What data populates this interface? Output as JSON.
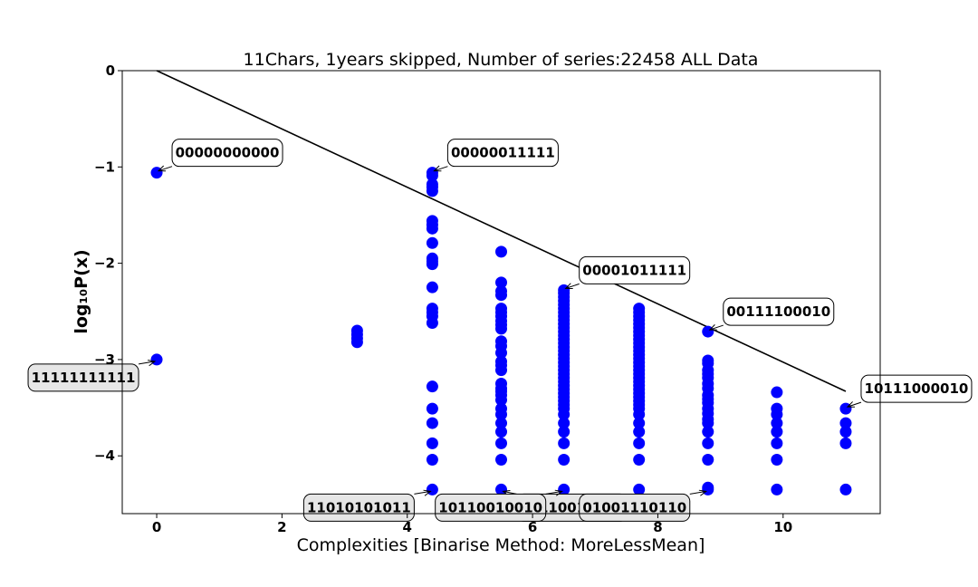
{
  "chart_data": {
    "type": "scatter",
    "title": "11Chars, 1years skipped, Number of series:22458 ALL Data",
    "xlabel": "Complexities [Binarise Method: MoreLessMean]",
    "ylabel": "log₁₀P(x)",
    "xlim": [
      -0.55,
      11.55
    ],
    "ylim": [
      -4.6,
      0
    ],
    "xticks": [
      0,
      2,
      4,
      6,
      8,
      10
    ],
    "yticks": [
      0,
      -1,
      -2,
      -3,
      -4
    ],
    "grid": false,
    "point_color": "#0000ff",
    "line_color": "#000000",
    "line": {
      "x": [
        0,
        11
      ],
      "y": [
        0,
        -3.33
      ]
    },
    "series": [
      {
        "x": 0,
        "y": [
          -1.06,
          -3.0
        ]
      },
      {
        "x": 3.2,
        "y": [
          -2.7,
          -2.74,
          -2.78,
          -2.82
        ]
      },
      {
        "x": 4.4,
        "y": [
          -1.06,
          -1.09,
          -1.18,
          -1.21,
          -1.25,
          -1.56,
          -1.6,
          -1.64,
          -1.79,
          -1.95,
          -1.98,
          -2.01,
          -2.25,
          -2.47,
          -2.51,
          -2.55,
          -2.62,
          -3.28,
          -3.51,
          -3.66,
          -3.87,
          -4.04,
          -4.35
        ]
      },
      {
        "x": 5.5,
        "y": [
          -1.88,
          -2.2,
          -2.29,
          -2.33,
          -2.47,
          -2.51,
          -2.55,
          -2.6,
          -2.64,
          -2.68,
          -2.81,
          -2.86,
          -2.93,
          -3.02,
          -3.06,
          -3.11,
          -3.25,
          -3.3,
          -3.33,
          -3.37,
          -3.42,
          -3.51,
          -3.57,
          -3.66,
          -3.75,
          -3.87,
          -4.04,
          -4.35
        ]
      },
      {
        "x": 6.5,
        "y": [
          -2.28,
          -2.31,
          -2.35,
          -2.39,
          -2.43,
          -2.47,
          -2.51,
          -2.55,
          -2.59,
          -2.63,
          -2.67,
          -2.71,
          -2.75,
          -2.79,
          -2.83,
          -2.87,
          -2.91,
          -2.95,
          -2.99,
          -3.03,
          -3.07,
          -3.11,
          -3.15,
          -3.19,
          -3.23,
          -3.27,
          -3.31,
          -3.35,
          -3.39,
          -3.43,
          -3.47,
          -3.51,
          -3.57,
          -3.66,
          -3.75,
          -3.87,
          -4.04,
          -4.35
        ]
      },
      {
        "x": 7.7,
        "y": [
          -2.47,
          -2.51,
          -2.55,
          -2.59,
          -2.63,
          -2.67,
          -2.71,
          -2.75,
          -2.79,
          -2.83,
          -2.87,
          -2.91,
          -2.95,
          -2.99,
          -3.03,
          -3.07,
          -3.11,
          -3.15,
          -3.19,
          -3.23,
          -3.27,
          -3.31,
          -3.35,
          -3.39,
          -3.43,
          -3.47,
          -3.51,
          -3.57,
          -3.66,
          -3.75,
          -3.87,
          -4.04,
          -4.35
        ]
      },
      {
        "x": 8.8,
        "y": [
          -2.71,
          -3.01,
          -3.04,
          -3.11,
          -3.15,
          -3.19,
          -3.25,
          -3.3,
          -3.37,
          -3.41,
          -3.45,
          -3.51,
          -3.56,
          -3.62,
          -3.66,
          -3.75,
          -3.87,
          -4.04,
          -4.33,
          -4.35
        ]
      },
      {
        "x": 9.9,
        "y": [
          -3.34,
          -3.51,
          -3.57,
          -3.66,
          -3.75,
          -3.87,
          -4.04,
          -4.35
        ]
      },
      {
        "x": 11.0,
        "y": [
          -3.51,
          -3.66,
          -3.75,
          -3.87,
          -4.35
        ]
      }
    ],
    "annotations": [
      {
        "text": "00000000000",
        "x": 0,
        "y": -1.06,
        "style": "white"
      },
      {
        "text": "11111111111",
        "x": 0,
        "y": -3.0,
        "style": "gray"
      },
      {
        "text": "00000011111",
        "x": 4.4,
        "y": -1.06,
        "style": "white"
      },
      {
        "text": "11010101011",
        "x": 4.4,
        "y": -4.35,
        "style": "gray"
      },
      {
        "text": "00110011000",
        "x": 5.5,
        "y": -4.35,
        "style": "gray"
      },
      {
        "text": "00001011111",
        "x": 6.5,
        "y": -2.28,
        "style": "white"
      },
      {
        "text": "10110010010",
        "x": 6.5,
        "y": -4.35,
        "style": "gray"
      },
      {
        "text": "00111100010",
        "x": 8.8,
        "y": -2.71,
        "style": "white"
      },
      {
        "text": "01001110110",
        "x": 8.8,
        "y": -4.35,
        "style": "gray"
      },
      {
        "text": "10111000010",
        "x": 11.0,
        "y": -3.51,
        "style": "white"
      }
    ]
  }
}
